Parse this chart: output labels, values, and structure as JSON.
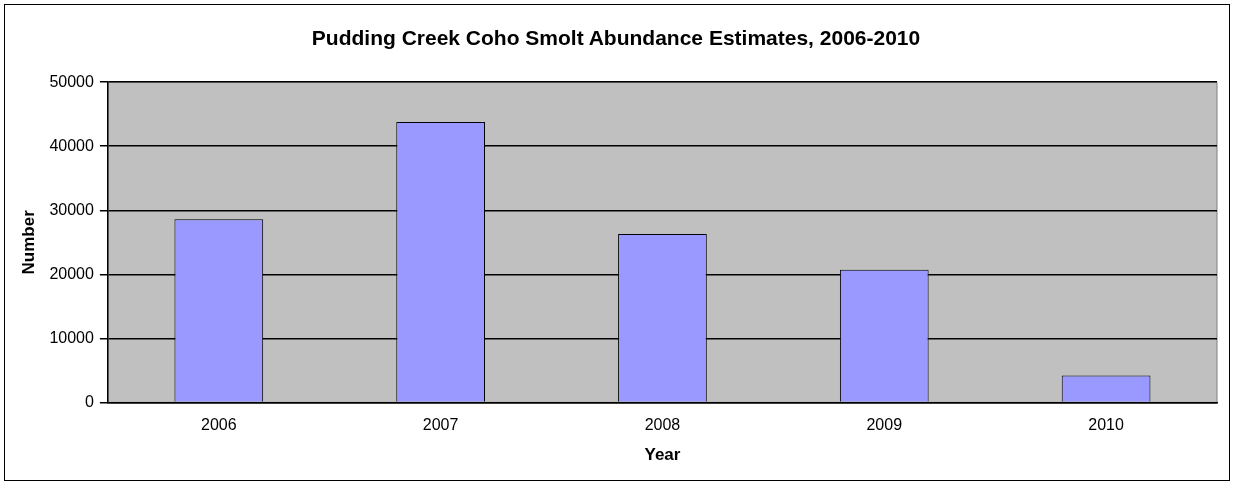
{
  "chart_data": {
    "type": "bar",
    "title": "Pudding Creek Coho Smolt Abundance Estimates, 2006-2010",
    "xlabel": "Year",
    "ylabel": "Number",
    "categories": [
      "2006",
      "2007",
      "2008",
      "2009",
      "2010"
    ],
    "values": [
      28600,
      43800,
      26300,
      20700,
      4200
    ],
    "color": "#9999ff",
    "ylim": [
      0,
      50000
    ],
    "yticks": [
      0,
      10000,
      20000,
      30000,
      40000,
      50000
    ],
    "grid": "y",
    "legend": false
  }
}
